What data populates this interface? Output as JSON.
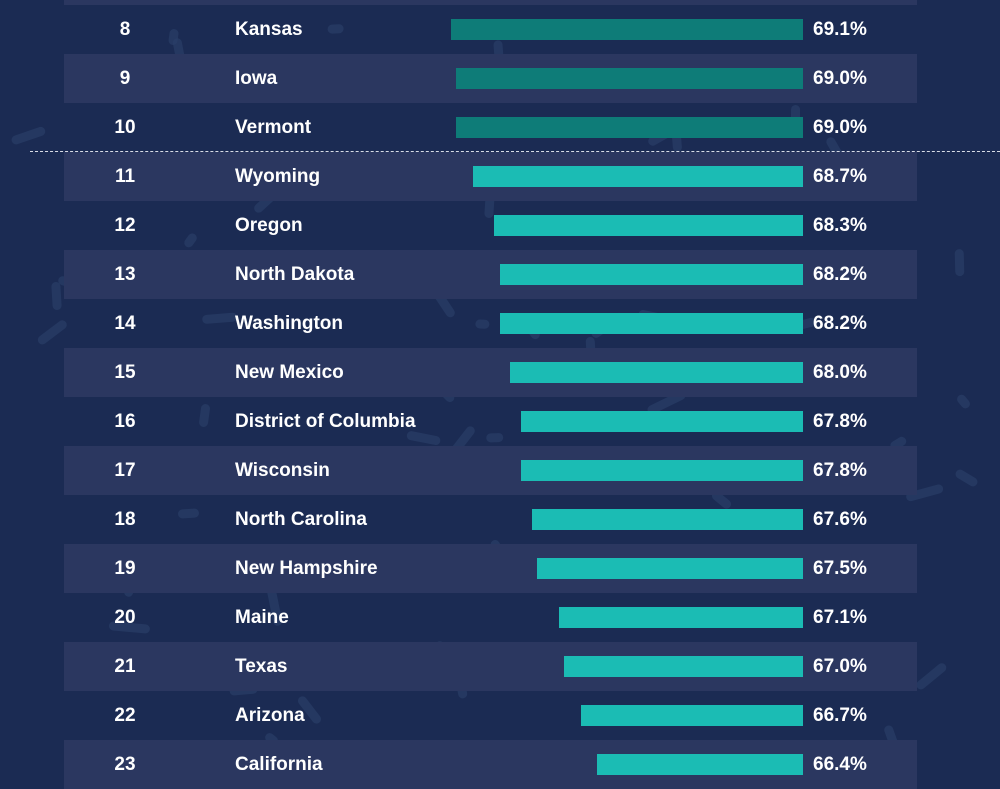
{
  "chart_data": {
    "type": "bar",
    "orientation": "horizontal",
    "colors": {
      "top10": "#0e7c78",
      "rest": "#1bbcb4",
      "background": "#1b2b53",
      "stripe": "#2b3760"
    },
    "rows": [
      {
        "rank": "8",
        "name": "Kansas",
        "value": 69.1,
        "label": "69.1%",
        "top10": true
      },
      {
        "rank": "9",
        "name": "Iowa",
        "value": 69.0,
        "label": "69.0%",
        "top10": true
      },
      {
        "rank": "10",
        "name": "Vermont",
        "value": 69.0,
        "label": "69.0%",
        "top10": true
      },
      {
        "rank": "11",
        "name": "Wyoming",
        "value": 68.7,
        "label": "68.7%"
      },
      {
        "rank": "12",
        "name": "Oregon",
        "value": 68.3,
        "label": "68.3%"
      },
      {
        "rank": "13",
        "name": "North Dakota",
        "value": 68.2,
        "label": "68.2%"
      },
      {
        "rank": "14",
        "name": "Washington",
        "value": 68.2,
        "label": "68.2%"
      },
      {
        "rank": "15",
        "name": "New Mexico",
        "value": 68.0,
        "label": "68.0%"
      },
      {
        "rank": "16",
        "name": "District of Columbia",
        "value": 67.8,
        "label": "67.8%"
      },
      {
        "rank": "17",
        "name": "Wisconsin",
        "value": 67.8,
        "label": "67.8%"
      },
      {
        "rank": "18",
        "name": "North Carolina",
        "value": 67.6,
        "label": "67.6%"
      },
      {
        "rank": "19",
        "name": "New Hampshire",
        "value": 67.5,
        "label": "67.5%"
      },
      {
        "rank": "20",
        "name": "Maine",
        "value": 67.1,
        "label": "67.1%"
      },
      {
        "rank": "21",
        "name": "Texas",
        "value": 67.0,
        "label": "67.0%"
      },
      {
        "rank": "22",
        "name": "Arizona",
        "value": 66.7,
        "label": "66.7%"
      },
      {
        "rank": "23",
        "name": "California",
        "value": 66.4,
        "label": "66.4%"
      }
    ]
  }
}
